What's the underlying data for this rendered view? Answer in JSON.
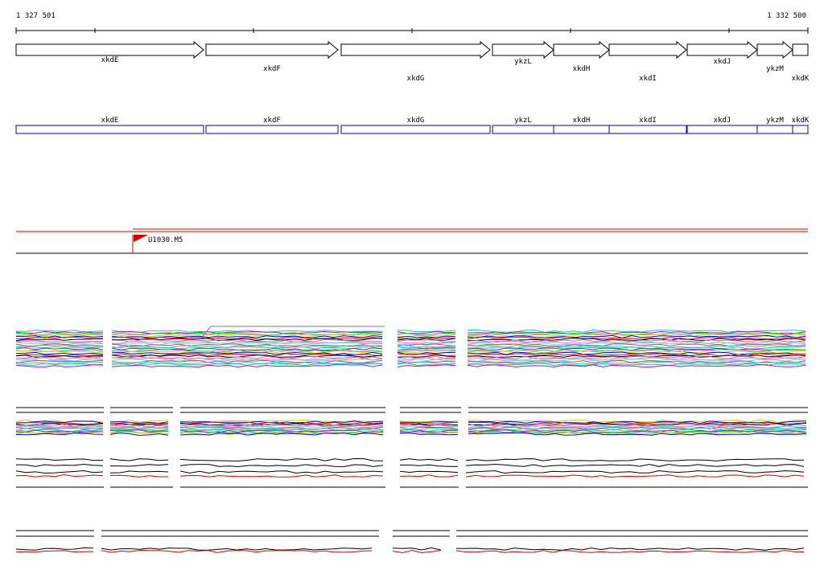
{
  "ruler": {
    "start_label": "1 327 501",
    "end_label": "1 332 500"
  },
  "genes": [
    {
      "name": "xkdE"
    },
    {
      "name": "xkdF"
    },
    {
      "name": "xkdG"
    },
    {
      "name": "ykzL"
    },
    {
      "name": "xkdH"
    },
    {
      "name": "xkdI"
    },
    {
      "name": "xkdJ"
    },
    {
      "name": "ykzM"
    },
    {
      "name": "xkdK"
    }
  ],
  "feature": {
    "label": "U1030.M5"
  },
  "colors": {
    "gene_outline": "#000000",
    "gene_box": "#0000cc",
    "feature": "#dd0000",
    "profile_palette": [
      "#00cccc",
      "#cc00cc",
      "#00cc00",
      "#cccc00",
      "#0000ff",
      "#ff0000",
      "#000000",
      "#888888",
      "#ff66ff",
      "#66ccff",
      "#996633",
      "#33cc99"
    ]
  }
}
